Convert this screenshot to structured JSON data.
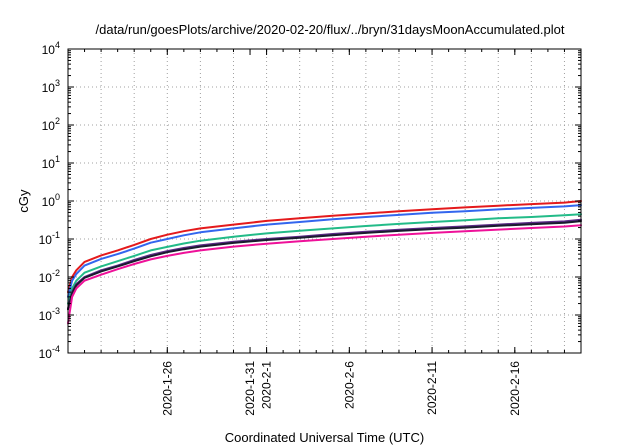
{
  "chart_data": {
    "type": "line",
    "title": "/data/run/goesPlots/archive/2020-02-20/flux/../bryn/31daysMoonAccumulated.plot",
    "xlabel": "Coordinated Universal Time (UTC)",
    "ylabel": "cGy",
    "x_range": [
      "2020-01-20",
      "2020-02-20"
    ],
    "yscale": "log",
    "ylim": [
      0.0001,
      10000
    ],
    "y_ticks": [
      {
        "value": 0.0001,
        "base": "10",
        "exp": "-4"
      },
      {
        "value": 0.001,
        "base": "10",
        "exp": "-3"
      },
      {
        "value": 0.01,
        "base": "10",
        "exp": "-2"
      },
      {
        "value": 0.1,
        "base": "10",
        "exp": "-1"
      },
      {
        "value": 1,
        "base": "10",
        "exp": "0"
      },
      {
        "value": 10,
        "base": "10",
        "exp": "1"
      },
      {
        "value": 100,
        "base": "10",
        "exp": "2"
      },
      {
        "value": 1000,
        "base": "10",
        "exp": "3"
      },
      {
        "value": 10000,
        "base": "10",
        "exp": "4"
      }
    ],
    "x_ticks": [
      "2020-1-26",
      "2020-1-31",
      "2020-2-1",
      "2020-2-6",
      "2020-2-11",
      "2020-2-16"
    ],
    "grid": true,
    "x": [
      "2020-01-20",
      "2020-01-20T06",
      "2020-01-20T12",
      "2020-01-21",
      "2020-01-22",
      "2020-01-23",
      "2020-01-24",
      "2020-01-25",
      "2020-01-26",
      "2020-01-27",
      "2020-01-28",
      "2020-01-30",
      "2020-02-01",
      "2020-02-03",
      "2020-02-05",
      "2020-02-07",
      "2020-02-09",
      "2020-02-11",
      "2020-02-13",
      "2020-02-15",
      "2020-02-17",
      "2020-02-19",
      "2020-02-20"
    ],
    "series": [
      {
        "color": "#e41a1c",
        "values": [
          0.004,
          0.01,
          0.015,
          0.025,
          0.037,
          0.05,
          0.07,
          0.1,
          0.13,
          0.16,
          0.19,
          0.24,
          0.3,
          0.35,
          0.41,
          0.47,
          0.54,
          0.61,
          0.68,
          0.75,
          0.83,
          0.91,
          1.0
        ]
      },
      {
        "color": "#3366ee",
        "values": [
          0.003,
          0.008,
          0.012,
          0.02,
          0.03,
          0.04,
          0.056,
          0.08,
          0.1,
          0.125,
          0.15,
          0.19,
          0.24,
          0.28,
          0.33,
          0.38,
          0.43,
          0.49,
          0.54,
          0.6,
          0.66,
          0.72,
          0.78
        ]
      },
      {
        "color": "#22bb88",
        "values": [
          0.002,
          0.005,
          0.008,
          0.013,
          0.019,
          0.026,
          0.036,
          0.05,
          0.062,
          0.076,
          0.09,
          0.115,
          0.14,
          0.165,
          0.19,
          0.22,
          0.25,
          0.28,
          0.31,
          0.35,
          0.38,
          0.42,
          0.45
        ]
      },
      {
        "color": "#5b2a86",
        "values": [
          0.0015,
          0.004,
          0.0065,
          0.01,
          0.015,
          0.02,
          0.028,
          0.038,
          0.048,
          0.058,
          0.068,
          0.085,
          0.1,
          0.115,
          0.135,
          0.155,
          0.175,
          0.195,
          0.215,
          0.24,
          0.265,
          0.29,
          0.32
        ]
      },
      {
        "color": "#1a1a2e",
        "values": [
          0.0014,
          0.0038,
          0.006,
          0.0095,
          0.014,
          0.019,
          0.026,
          0.035,
          0.045,
          0.054,
          0.063,
          0.079,
          0.094,
          0.108,
          0.126,
          0.145,
          0.163,
          0.182,
          0.2,
          0.222,
          0.245,
          0.268,
          0.295
        ]
      },
      {
        "color": "#ee1199",
        "values": [
          0.0006,
          0.003,
          0.005,
          0.008,
          0.0115,
          0.016,
          0.022,
          0.029,
          0.036,
          0.043,
          0.05,
          0.063,
          0.075,
          0.087,
          0.1,
          0.115,
          0.13,
          0.145,
          0.16,
          0.177,
          0.195,
          0.213,
          0.23
        ]
      }
    ]
  }
}
